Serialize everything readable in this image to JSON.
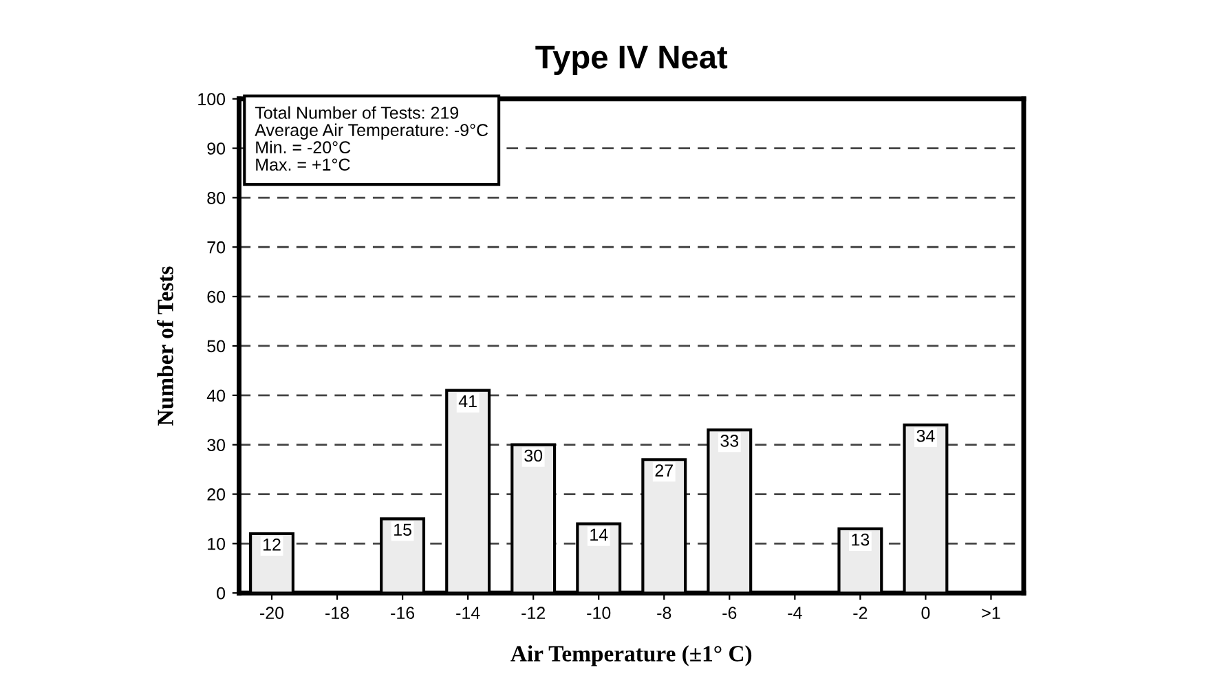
{
  "chart_data": {
    "type": "bar",
    "title": "Type IV Neat",
    "xlabel": "Air Temperature (±1° C)",
    "ylabel": "Number of Tests",
    "categories": [
      "-20",
      "-18",
      "-16",
      "-14",
      "-12",
      "-10",
      "-8",
      "-6",
      "-4",
      "-2",
      "0",
      ">1"
    ],
    "values": [
      12,
      null,
      15,
      41,
      30,
      14,
      27,
      33,
      null,
      13,
      34,
      null
    ],
    "value_labels": [
      "12",
      null,
      "15",
      "41",
      "30",
      "14",
      "27",
      "33",
      null,
      "13",
      "34",
      null
    ],
    "color": "#ececec",
    "ylim": [
      0,
      100
    ],
    "yticks": [
      0,
      10,
      20,
      30,
      40,
      50,
      60,
      70,
      80,
      90,
      100
    ],
    "grid": "y",
    "legend": false,
    "annotations": [
      "Total Number of Tests: 219\nAverage Air Temperature: -9°C\nMin. = -20°C\nMax. = +1°C"
    ]
  }
}
